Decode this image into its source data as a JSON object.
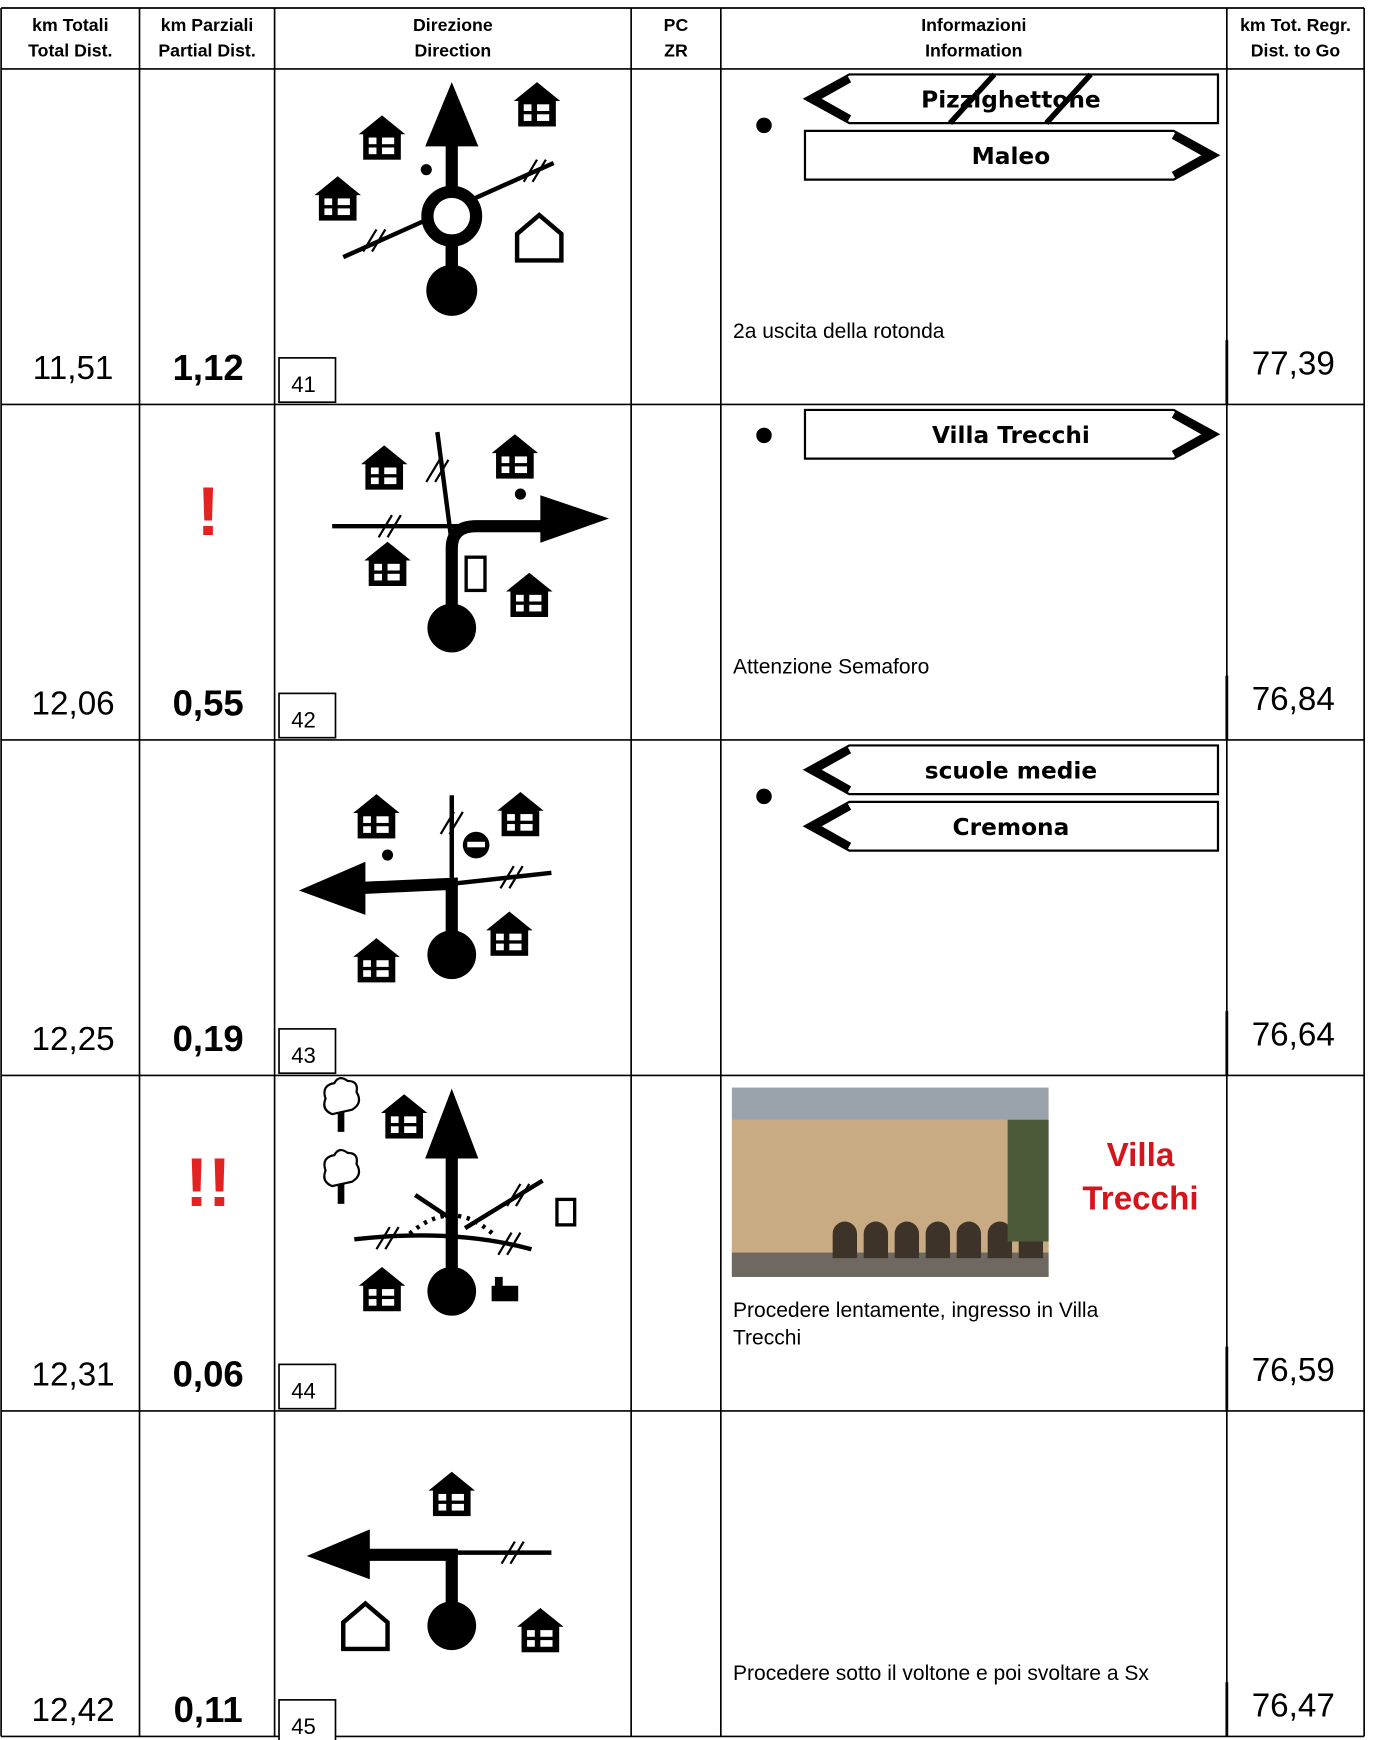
{
  "header": {
    "columns": [
      [
        "km Totali",
        "Total Dist."
      ],
      [
        "km Parziali",
        "Partial Dist."
      ],
      [
        "Direzione",
        "Direction"
      ],
      [
        "PC",
        "ZR"
      ],
      [
        "Informazioni",
        "Information"
      ],
      [
        "km Tot. Regr.",
        "Dist. to Go"
      ]
    ]
  },
  "rows": [
    {
      "km_total": "11,51",
      "km_partial": "1,12",
      "step": 41,
      "km_to_go": "77,39",
      "info": [
        "2a uscita della rotonda"
      ],
      "signs": [
        {
          "text": "Pizzighettone",
          "direction": "left",
          "crossed": true
        },
        {
          "text": "Maleo",
          "direction": "right"
        }
      ]
    },
    {
      "km_total": "12,06",
      "km_partial": "0,55",
      "warning": "!",
      "step": 42,
      "km_to_go": "76,84",
      "info": [
        "Attenzione Semaforo"
      ],
      "signs": [
        {
          "text": "Villa Trecchi",
          "direction": "right"
        }
      ]
    },
    {
      "km_total": "12,25",
      "km_partial": "0,19",
      "step": 43,
      "km_to_go": "76,64",
      "signs": [
        {
          "text": "scuole medie",
          "direction": "left"
        },
        {
          "text": "Cremona",
          "direction": "left"
        }
      ]
    },
    {
      "km_total": "12,31",
      "km_partial": "0,06",
      "warning": "!!",
      "step": 44,
      "km_to_go": "76,59",
      "title": [
        "Villa",
        "Trecchi"
      ],
      "info": [
        "Procedere lentamente, ingresso in Villa",
        "Trecchi"
      ]
    },
    {
      "km_total": "12,42",
      "km_partial": "0,11",
      "step": 45,
      "km_to_go": "76,47",
      "info": [
        "Procedere sotto il voltone e poi svoltare a Sx"
      ]
    }
  ]
}
